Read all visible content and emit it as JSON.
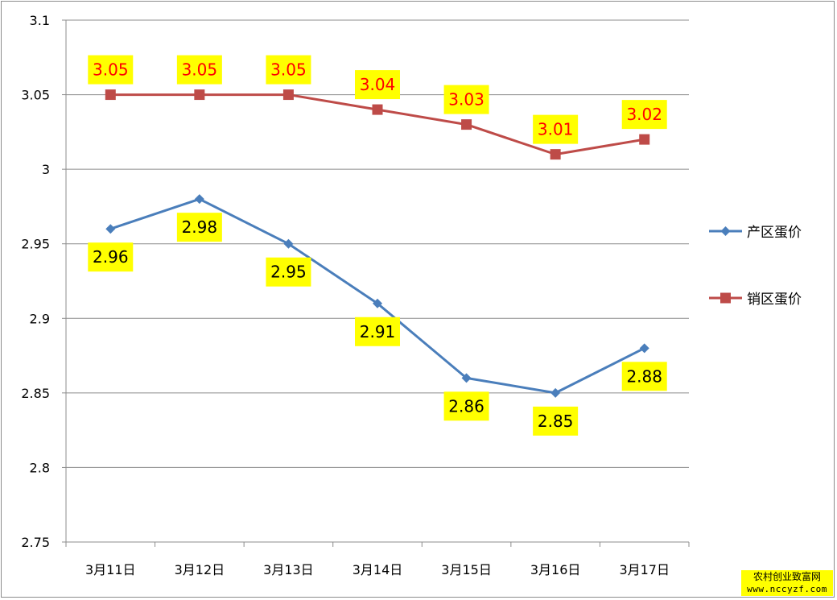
{
  "chart_data": {
    "type": "line",
    "title": "",
    "xlabel": "",
    "ylabel": "",
    "categories": [
      "3月11日",
      "3月12日",
      "3月13日",
      "3月14日",
      "3月15日",
      "3月16日",
      "3月17日"
    ],
    "ylim": [
      2.75,
      3.1
    ],
    "yticks": [
      "3.1",
      "3.05",
      "3",
      "2.95",
      "2.9",
      "2.85",
      "2.8",
      "2.75"
    ],
    "grid": "horizontal",
    "legend_position": "right",
    "series": [
      {
        "name": "产区蛋价",
        "color": "#4a7ebb",
        "marker": "diamond",
        "label_color": "#000000",
        "values": [
          2.96,
          2.98,
          2.95,
          2.91,
          2.86,
          2.85,
          2.88
        ],
        "labels": [
          "2.96",
          "2.98",
          "2.95",
          "2.91",
          "2.86",
          "2.85",
          "2.88"
        ]
      },
      {
        "name": "销区蛋价",
        "color": "#be4b48",
        "marker": "square",
        "label_color": "#ff0000",
        "values": [
          3.05,
          3.05,
          3.05,
          3.04,
          3.03,
          3.01,
          3.02
        ],
        "labels": [
          "3.05",
          "3.05",
          "3.05",
          "3.04",
          "3.03",
          "3.01",
          "3.02"
        ]
      }
    ],
    "data_label_background": "#ffff00"
  },
  "watermark": {
    "line1": "农村创业致富网",
    "line2": "www.nccyzf.com"
  }
}
